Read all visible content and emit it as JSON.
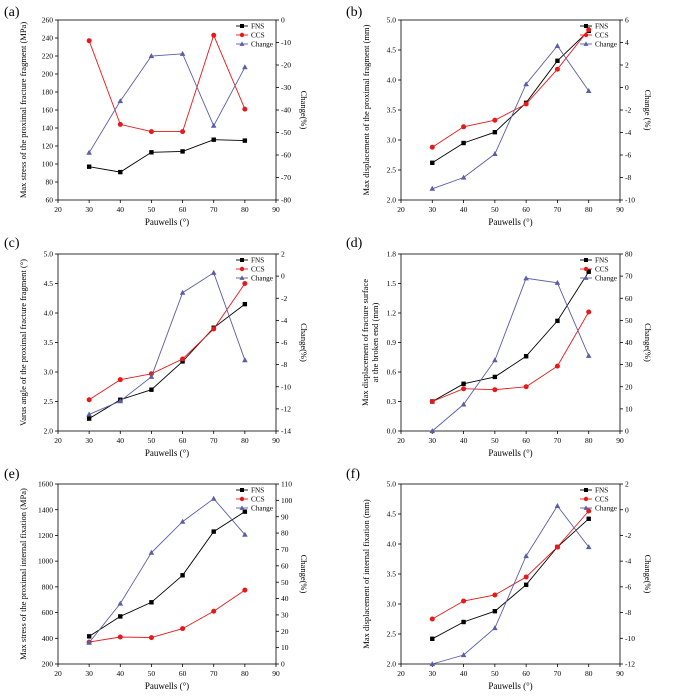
{
  "figure": {
    "xlabel": "Pauwells (°)",
    "xticks": [
      "20",
      "30",
      "40",
      "50",
      "60",
      "70",
      "80",
      "90"
    ],
    "legend": [
      "FNS",
      "CCS",
      "Change"
    ],
    "colors": {
      "fns": "#000000",
      "ccs": "#e8191a",
      "change": "#5b5ea6"
    }
  },
  "chart_data": [
    {
      "panel": "(a)",
      "type": "line",
      "title": "",
      "xlabel": "Pauwells (°)",
      "ylabel": "Max stress of the proximal fracture fragment (MPa)",
      "ylabel_right": "Change(%)",
      "x": [
        30,
        40,
        50,
        60,
        70,
        80
      ],
      "xlim": [
        20,
        90
      ],
      "ylim": [
        60,
        260
      ],
      "yticks": [
        "60",
        "80",
        "100",
        "120",
        "140",
        "160",
        "180",
        "200",
        "220",
        "240",
        "260"
      ],
      "ylim_right": [
        -80,
        0
      ],
      "yticks_right": [
        "-80",
        "-70",
        "-60",
        "-50",
        "-40",
        "-30",
        "-20",
        "-10",
        "0"
      ],
      "series": [
        {
          "name": "FNS",
          "axis": "left",
          "values": [
            97,
            91,
            113,
            114,
            127,
            126
          ]
        },
        {
          "name": "CCS",
          "axis": "left",
          "values": [
            237,
            144,
            136,
            136,
            243,
            161
          ]
        },
        {
          "name": "Change",
          "axis": "right",
          "values": [
            -59,
            -36,
            -16,
            -15,
            -47,
            -21
          ]
        }
      ]
    },
    {
      "panel": "(b)",
      "type": "line",
      "title": "",
      "xlabel": "Pauwells (°)",
      "ylabel": "Max displacement of the proximal fragment (mm)",
      "ylabel_right": "Change (%)",
      "x": [
        30,
        40,
        50,
        60,
        70,
        80
      ],
      "xlim": [
        20,
        90
      ],
      "ylim": [
        2.0,
        5.0
      ],
      "yticks": [
        "2.0",
        "2.5",
        "3.0",
        "3.5",
        "4.0",
        "4.5",
        "5.0"
      ],
      "ylim_right": [
        -10,
        6
      ],
      "yticks_right": [
        "-10",
        "-8",
        "-6",
        "-4",
        "-2",
        "0",
        "2",
        "4",
        "6"
      ],
      "series": [
        {
          "name": "FNS",
          "axis": "left",
          "values": [
            2.62,
            2.95,
            3.13,
            3.62,
            4.32,
            4.82
          ]
        },
        {
          "name": "CCS",
          "axis": "left",
          "values": [
            2.88,
            3.22,
            3.33,
            3.6,
            4.18,
            4.84
          ]
        },
        {
          "name": "Change",
          "axis": "right",
          "values": [
            -9.0,
            -8.0,
            -5.9,
            0.3,
            3.7,
            -0.3
          ]
        }
      ]
    },
    {
      "panel": "(c)",
      "type": "line",
      "title": "",
      "xlabel": "Pauwells (°)",
      "ylabel": "Varus angle of the proximal fracture fragment (°)",
      "ylabel_right": "Change(%)",
      "x": [
        30,
        40,
        50,
        60,
        70,
        80
      ],
      "xlim": [
        20,
        90
      ],
      "ylim": [
        2.0,
        5.0
      ],
      "yticks": [
        "2.0",
        "2.5",
        "3.0",
        "3.5",
        "4.0",
        "4.5",
        "5.0"
      ],
      "ylim_right": [
        -14,
        2
      ],
      "yticks_right": [
        "-14",
        "-12",
        "-10",
        "-8",
        "-6",
        "-4",
        "-2",
        "0",
        "2"
      ],
      "series": [
        {
          "name": "FNS",
          "axis": "left",
          "values": [
            2.21,
            2.53,
            2.7,
            3.18,
            3.75,
            4.15
          ]
        },
        {
          "name": "CCS",
          "axis": "left",
          "values": [
            2.53,
            2.87,
            2.97,
            3.22,
            3.73,
            4.5
          ]
        },
        {
          "name": "Change",
          "axis": "right",
          "values": [
            -12.5,
            -11.3,
            -9.1,
            -1.5,
            0.3,
            -7.6
          ]
        }
      ]
    },
    {
      "panel": "(d)",
      "type": "line",
      "title": "",
      "xlabel": "Pauwells (°)",
      "ylabel": "Max displacement of fracture surface at the broken end (mm)",
      "ylabel_line1": "Max displacement of fracture surface",
      "ylabel_line2": "at the broken end (mm)",
      "ylabel_right": "Change(%)",
      "x": [
        30,
        40,
        50,
        60,
        70,
        80
      ],
      "xlim": [
        20,
        90
      ],
      "ylim": [
        0.0,
        1.8
      ],
      "yticks": [
        "0.0",
        "0.3",
        "0.6",
        "0.9",
        "1.2",
        "1.5",
        "1.8"
      ],
      "ylim_right": [
        0,
        80
      ],
      "yticks_right": [
        "0",
        "10",
        "20",
        "30",
        "40",
        "50",
        "60",
        "70",
        "80"
      ],
      "series": [
        {
          "name": "FNS",
          "axis": "left",
          "values": [
            0.3,
            0.48,
            0.55,
            0.76,
            1.12,
            1.62
          ]
        },
        {
          "name": "CCS",
          "axis": "left",
          "values": [
            0.3,
            0.43,
            0.42,
            0.45,
            0.66,
            1.21
          ]
        },
        {
          "name": "Change",
          "axis": "right",
          "values": [
            0,
            12,
            32,
            69,
            67,
            34
          ]
        }
      ]
    },
    {
      "panel": "(e)",
      "type": "line",
      "title": "",
      "xlabel": "Pauwells (°)",
      "ylabel": "Max stress of the proximal internal fixation (MPa)",
      "ylabel_right": "Change(%)",
      "x": [
        30,
        40,
        50,
        60,
        70,
        80
      ],
      "xlim": [
        20,
        90
      ],
      "ylim": [
        200,
        1600
      ],
      "yticks": [
        "200",
        "400",
        "600",
        "800",
        "1000",
        "1200",
        "1400",
        "1600"
      ],
      "ylim_right": [
        0,
        110
      ],
      "yticks_right": [
        "0",
        "10",
        "20",
        "30",
        "40",
        "50",
        "60",
        "70",
        "80",
        "90",
        "100",
        "110"
      ],
      "series": [
        {
          "name": "FNS",
          "axis": "left",
          "values": [
            415,
            570,
            680,
            890,
            1230,
            1385
          ]
        },
        {
          "name": "CCS",
          "axis": "left",
          "values": [
            370,
            410,
            405,
            475,
            610,
            775
          ]
        },
        {
          "name": "Change",
          "axis": "right",
          "values": [
            13,
            37,
            68,
            87,
            101,
            79
          ]
        }
      ]
    },
    {
      "panel": "(f)",
      "type": "line",
      "title": "",
      "xlabel": "Pauwells (°)",
      "ylabel": "Max displacement of internal fixation (mm)",
      "ylabel_right": "Change(%)",
      "x": [
        30,
        40,
        50,
        60,
        70,
        80
      ],
      "xlim": [
        20,
        90
      ],
      "ylim": [
        2.0,
        5.0
      ],
      "yticks": [
        "2.0",
        "2.5",
        "3.0",
        "3.5",
        "4.0",
        "4.5",
        "5.0"
      ],
      "ylim_right": [
        -12,
        2
      ],
      "yticks_right": [
        "-12",
        "-10",
        "-8",
        "-6",
        "-4",
        "-2",
        "0",
        "2"
      ],
      "series": [
        {
          "name": "FNS",
          "axis": "left",
          "values": [
            2.42,
            2.7,
            2.88,
            3.32,
            3.95,
            4.42
          ]
        },
        {
          "name": "CCS",
          "axis": "left",
          "values": [
            2.75,
            3.05,
            3.15,
            3.45,
            3.95,
            4.55
          ]
        },
        {
          "name": "Change",
          "axis": "right",
          "values": [
            -12.0,
            -11.3,
            -9.2,
            -3.6,
            0.3,
            -2.9
          ]
        }
      ]
    }
  ]
}
